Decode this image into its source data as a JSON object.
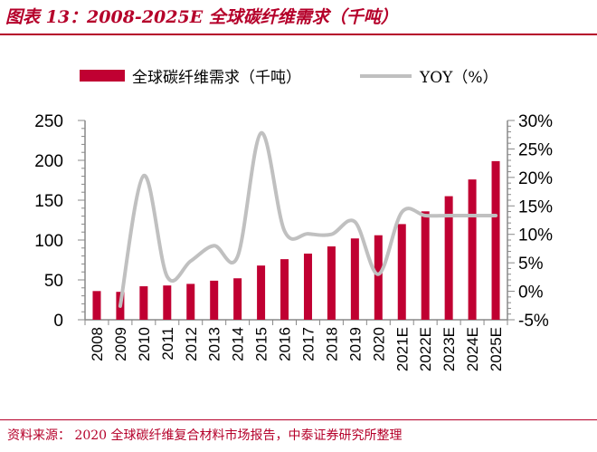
{
  "title": "图表 13：2008-2025E 全球碳纤维需求（千吨）",
  "source": "资料来源：  2020 全球碳纤维复合材料市场报告，中泰证券研究所整理",
  "chart_data": {
    "type": "bar+line",
    "categories": [
      "2008",
      "2009",
      "2010",
      "2011",
      "2012",
      "2013",
      "2014",
      "2015",
      "2016",
      "2017",
      "2018",
      "2019",
      "2020",
      "2021E",
      "2022E",
      "2023E",
      "2024E",
      "2025E"
    ],
    "series": [
      {
        "name": "全球碳纤维需求（千吨）",
        "type": "bar",
        "axis": "left",
        "color": "#c00032",
        "values": [
          36,
          35,
          42,
          43,
          45,
          49,
          52,
          68,
          76,
          83,
          92,
          102,
          106,
          120,
          136,
          155,
          176,
          199
        ]
      },
      {
        "name": "YOY（%）",
        "type": "line",
        "axis": "right",
        "color": "#c0c0c0",
        "values": [
          null,
          -2.6,
          20.3,
          2.6,
          5.3,
          8.0,
          6.1,
          27.8,
          10.6,
          10.1,
          10.0,
          12.2,
          3.0,
          13.9,
          13.3,
          13.3,
          13.3,
          13.3
        ]
      }
    ],
    "ylim_left": [
      0,
      250
    ],
    "yticks_left": [
      "0",
      "50",
      "100",
      "150",
      "200",
      "250"
    ],
    "ylim_right": [
      -5,
      30
    ],
    "yticks_right": [
      "-5%",
      "0%",
      "5%",
      "10%",
      "15%",
      "20%",
      "25%",
      "30%"
    ],
    "legend": "top",
    "grid": false
  }
}
